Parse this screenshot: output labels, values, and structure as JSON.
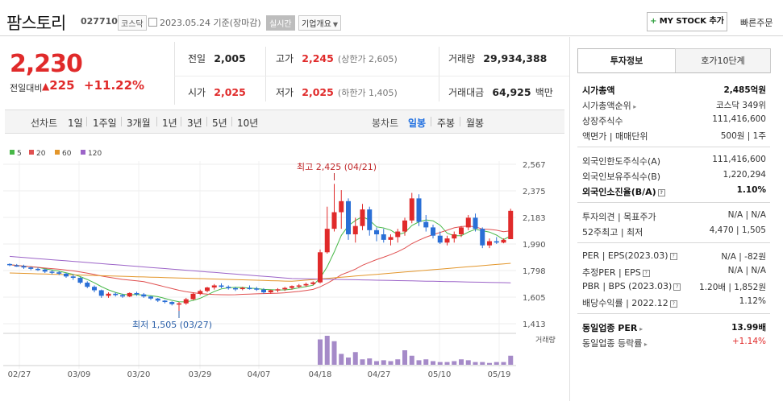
{
  "header": {
    "name": "팜스토리",
    "code": "027710",
    "market": "코스닥",
    "date": "2023.05.24 기준(장마감)",
    "realtime_label": "실시간",
    "corp_overview_label": "기업개요",
    "mystock_label": "MY STOCK 추가",
    "quick_order_label": "빠른주문"
  },
  "price": {
    "current": "2,230",
    "change_label": "전일대비",
    "change": "225",
    "change_pct": "+11.22%",
    "stats": [
      {
        "label": "전일",
        "value": "2,005"
      },
      {
        "label": "고가",
        "value": "2,245",
        "sub": "(상한가 2,605)"
      },
      {
        "label": "거래량",
        "value": "29,934,388"
      },
      {
        "label": "시가",
        "value": "2,025"
      },
      {
        "label": "저가",
        "value": "2,025",
        "sub": "(하한가 1,405)"
      },
      {
        "label": "거래대금",
        "value": "64,925",
        "unit": "백만"
      }
    ]
  },
  "period_bar": {
    "label": "선차트",
    "periods": [
      "1일",
      "1주일",
      "3개월",
      "1년",
      "3년",
      "5년",
      "10년"
    ],
    "label2": "봉차트",
    "candle_periods": [
      "일봉",
      "주봉",
      "월봉"
    ],
    "active": "일봉"
  },
  "colors": {
    "up": "#e02a2a",
    "down": "#2a6fd6",
    "ma5": "#48b848",
    "ma20": "#e05050",
    "ma60": "#e3962b",
    "ma120": "#9c64c8",
    "volume": "#a58ac8"
  },
  "chart_data": {
    "type": "candlestick",
    "legend": [
      {
        "name": "5",
        "color": "#48b848"
      },
      {
        "name": "20",
        "color": "#e05050"
      },
      {
        "name": "60",
        "color": "#e3962b"
      },
      {
        "name": "120",
        "color": "#9c64c8"
      }
    ],
    "y_ticks": [
      "2,567",
      "2,375",
      "2,183",
      "1,990",
      "1,798",
      "1,605",
      "1,413"
    ],
    "ylim": [
      1413,
      2567
    ],
    "x_ticks": [
      "02/27",
      "03/09",
      "03/20",
      "03/29",
      "04/07",
      "04/18",
      "04/27",
      "05/10",
      "05/19"
    ],
    "high_annotation": "최고 2,425 (04/21)",
    "low_annotation": "최저 1,505 (03/27)",
    "volume_label": "거래량",
    "candles": [
      [
        1845,
        1850,
        1830,
        1840
      ],
      [
        1835,
        1845,
        1825,
        1830
      ],
      [
        1830,
        1840,
        1810,
        1820
      ],
      [
        1820,
        1825,
        1800,
        1810
      ],
      [
        1810,
        1820,
        1795,
        1805
      ],
      [
        1805,
        1810,
        1780,
        1790
      ],
      [
        1790,
        1800,
        1770,
        1785
      ],
      [
        1785,
        1795,
        1765,
        1775
      ],
      [
        1775,
        1780,
        1745,
        1755
      ],
      [
        1755,
        1770,
        1730,
        1745
      ],
      [
        1745,
        1750,
        1700,
        1710
      ],
      [
        1710,
        1720,
        1670,
        1680
      ],
      [
        1680,
        1690,
        1640,
        1655
      ],
      [
        1655,
        1660,
        1600,
        1615
      ],
      [
        1615,
        1640,
        1600,
        1630
      ],
      [
        1630,
        1640,
        1610,
        1620
      ],
      [
        1620,
        1630,
        1600,
        1610
      ],
      [
        1610,
        1640,
        1605,
        1635
      ],
      [
        1635,
        1645,
        1615,
        1625
      ],
      [
        1625,
        1635,
        1600,
        1610
      ],
      [
        1610,
        1615,
        1585,
        1595
      ],
      [
        1595,
        1600,
        1570,
        1580
      ],
      [
        1580,
        1585,
        1560,
        1570
      ],
      [
        1570,
        1575,
        1545,
        1555
      ],
      [
        1555,
        1570,
        1505,
        1560
      ],
      [
        1560,
        1600,
        1550,
        1590
      ],
      [
        1590,
        1640,
        1585,
        1630
      ],
      [
        1630,
        1660,
        1620,
        1650
      ],
      [
        1650,
        1680,
        1640,
        1675
      ],
      [
        1675,
        1700,
        1660,
        1690
      ],
      [
        1690,
        1705,
        1670,
        1680
      ],
      [
        1680,
        1690,
        1660,
        1670
      ],
      [
        1670,
        1680,
        1650,
        1665
      ],
      [
        1665,
        1680,
        1655,
        1672
      ],
      [
        1672,
        1690,
        1660,
        1668
      ],
      [
        1668,
        1680,
        1650,
        1660
      ],
      [
        1660,
        1670,
        1630,
        1640
      ],
      [
        1640,
        1660,
        1630,
        1655
      ],
      [
        1655,
        1670,
        1640,
        1662
      ],
      [
        1662,
        1680,
        1650,
        1672
      ],
      [
        1672,
        1690,
        1660,
        1685
      ],
      [
        1685,
        1700,
        1670,
        1690
      ],
      [
        1690,
        1710,
        1680,
        1700
      ],
      [
        1700,
        1720,
        1690,
        1712
      ],
      [
        1712,
        1950,
        1705,
        1930
      ],
      [
        1930,
        2260,
        1920,
        2100
      ],
      [
        2100,
        2425,
        2080,
        2220
      ],
      [
        2220,
        2380,
        2100,
        2300
      ],
      [
        2300,
        2320,
        2020,
        2060
      ],
      [
        2060,
        2180,
        2000,
        2120
      ],
      [
        2120,
        2280,
        2090,
        2240
      ],
      [
        2240,
        2260,
        2050,
        2090
      ],
      [
        2090,
        2110,
        2010,
        2060
      ],
      [
        2060,
        2100,
        2000,
        2020
      ],
      [
        2020,
        2060,
        1980,
        2040
      ],
      [
        2040,
        2100,
        2000,
        2080
      ],
      [
        2080,
        2180,
        2050,
        2160
      ],
      [
        2160,
        2360,
        2140,
        2320
      ],
      [
        2320,
        2350,
        2120,
        2150
      ],
      [
        2150,
        2200,
        2080,
        2110
      ],
      [
        2110,
        2130,
        2030,
        2050
      ],
      [
        2050,
        2080,
        1990,
        2000
      ],
      [
        2000,
        2050,
        1980,
        2030
      ],
      [
        2030,
        2080,
        2000,
        2060
      ],
      [
        2060,
        2120,
        2040,
        2110
      ],
      [
        2110,
        2200,
        2090,
        2180
      ],
      [
        2180,
        2210,
        2080,
        2100
      ],
      [
        2100,
        2110,
        1960,
        1980
      ],
      [
        1980,
        2030,
        1960,
        2010
      ],
      [
        2010,
        2040,
        1990,
        2000
      ],
      [
        2000,
        2030,
        1995,
        2020
      ],
      [
        2025,
        2245,
        2025,
        2230
      ]
    ],
    "volumes": [
      0,
      0,
      0,
      0,
      0,
      0,
      0,
      0,
      0,
      0,
      0,
      0,
      0,
      0,
      0,
      0,
      0,
      0,
      0,
      0,
      0,
      0,
      0,
      0,
      0,
      0,
      0,
      0,
      0,
      0,
      0,
      0,
      0,
      0,
      0,
      0,
      0,
      0,
      0,
      0,
      0,
      0,
      0,
      0,
      2.8,
      3.2,
      2.6,
      1.2,
      0.8,
      1.4,
      0.6,
      0.7,
      0.4,
      0.5,
      0.4,
      0.6,
      1.6,
      1.0,
      0.5,
      0.6,
      0.4,
      0.3,
      0.3,
      0.4,
      0.6,
      0.5,
      0.3,
      0.3,
      0.2,
      0.3,
      0.3,
      1.0
    ]
  },
  "info_panel": {
    "tabs": [
      "투자정보",
      "호가10단계"
    ],
    "groups": [
      [
        {
          "label": "시가총액",
          "value": "2,485억원",
          "bold": true
        },
        {
          "label": "시가총액순위",
          "value": "코스닥 349위",
          "arrow": true
        },
        {
          "label": "상장주식수",
          "value": "111,416,600"
        },
        {
          "label": "액면가 | 매매단위",
          "value": "500원 | 1주"
        }
      ],
      [
        {
          "label": "외국인한도주식수(A)",
          "value": "111,416,600"
        },
        {
          "label": "외국인보유주식수(B)",
          "value": "1,220,294"
        },
        {
          "label": "외국인소진율(B/A)",
          "value": "1.10%",
          "bold": true,
          "q": true
        }
      ],
      [
        {
          "label": "투자의견 | 목표주가",
          "value": "N/A | N/A"
        },
        {
          "label": "52주최고 | 최저",
          "value": "4,470 | 1,505"
        }
      ],
      [
        {
          "label": "PER | EPS(2023.03)",
          "value": "N/A | -82원",
          "q": true
        },
        {
          "label": "추정PER | EPS",
          "value": "N/A | N/A",
          "q": true
        },
        {
          "label": "PBR | BPS (2023.03)",
          "value": "1.20배 | 1,852원",
          "q": true
        },
        {
          "label": "배당수익률 | 2022.12",
          "value": "1.12%",
          "q": true
        }
      ],
      [
        {
          "label": "동일업종 PER",
          "value": "13.99배",
          "bold": true,
          "arrow": true
        },
        {
          "label": "동일업종 등락률",
          "value": "+1.14%",
          "red": true,
          "arrow": true
        }
      ]
    ]
  }
}
